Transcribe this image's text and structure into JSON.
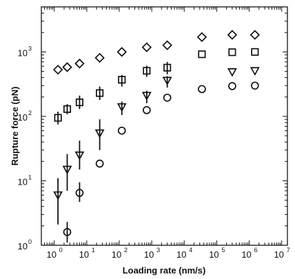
{
  "chart_data": {
    "type": "scatter",
    "title": "",
    "xlabel": "Loading rate (nm/s)",
    "ylabel": "Rupture force (pN)",
    "x_scale": "log",
    "y_scale": "log",
    "xlim": [
      0.4,
      15000000
    ],
    "ylim": [
      1,
      5000
    ],
    "x_ticks": [
      {
        "base": "10",
        "exp": "0",
        "value": 1
      },
      {
        "base": "10",
        "exp": "1",
        "value": 10
      },
      {
        "base": "10",
        "exp": "2",
        "value": 100
      },
      {
        "base": "10",
        "exp": "3",
        "value": 1000
      },
      {
        "base": "10",
        "exp": "4",
        "value": 10000
      },
      {
        "base": "10",
        "exp": "5",
        "value": 100000
      },
      {
        "base": "10",
        "exp": "6",
        "value": 1000000
      },
      {
        "base": "10",
        "exp": "7",
        "value": 10000000
      }
    ],
    "y_ticks": [
      {
        "base": "10",
        "exp": "0",
        "value": 1
      },
      {
        "base": "10",
        "exp": "1",
        "value": 10
      },
      {
        "base": "10",
        "exp": "2",
        "value": 100
      },
      {
        "base": "10",
        "exp": "3",
        "value": 1000
      }
    ],
    "grid": false,
    "legend": "none",
    "series": [
      {
        "marker": "diamond",
        "points": [
          {
            "x": 1.3,
            "y": 530
          },
          {
            "x": 2.5,
            "y": 580
          },
          {
            "x": 6,
            "y": 660
          },
          {
            "x": 25,
            "y": 810
          },
          {
            "x": 120,
            "y": 1000
          },
          {
            "x": 700,
            "y": 1180
          },
          {
            "x": 3000,
            "y": 1270
          },
          {
            "x": 35000,
            "y": 1700
          },
          {
            "x": 300000,
            "y": 1840
          },
          {
            "x": 1500000,
            "y": 1840
          }
        ]
      },
      {
        "marker": "square",
        "points": [
          {
            "x": 1.3,
            "y": 95,
            "err": [
              75,
              118
            ]
          },
          {
            "x": 2.5,
            "y": 130,
            "err": [
              108,
              155
            ]
          },
          {
            "x": 6,
            "y": 165,
            "err": [
              130,
              210
            ]
          },
          {
            "x": 25,
            "y": 230,
            "err": [
              180,
              290
            ]
          },
          {
            "x": 120,
            "y": 370,
            "err": [
              290,
              440
            ]
          },
          {
            "x": 700,
            "y": 510,
            "err": [
              410,
              610
            ]
          },
          {
            "x": 3000,
            "y": 570,
            "err": [
              450,
              700
            ]
          },
          {
            "x": 35000,
            "y": 920
          },
          {
            "x": 300000,
            "y": 990
          },
          {
            "x": 1500000,
            "y": 1000
          }
        ]
      },
      {
        "marker": "triangle-down",
        "points": [
          {
            "x": 1.3,
            "y": 6,
            "err": [
              2.1,
              11
            ]
          },
          {
            "x": 2.5,
            "y": 15,
            "err": [
              7,
              26
            ]
          },
          {
            "x": 6,
            "y": 25,
            "err": [
              15,
              42
            ]
          },
          {
            "x": 25,
            "y": 55,
            "err": [
              30,
              90
            ]
          },
          {
            "x": 120,
            "y": 140,
            "err": [
              105,
              170
            ]
          },
          {
            "x": 700,
            "y": 210,
            "err": [
              160,
              250
            ]
          },
          {
            "x": 3000,
            "y": 360,
            "err": [
              280,
              420
            ]
          },
          {
            "x": 300000,
            "y": 490
          },
          {
            "x": 1500000,
            "y": 510
          }
        ]
      },
      {
        "marker": "circle",
        "points": [
          {
            "x": 2.5,
            "y": 1.6,
            "err": [
              1.1,
              2.3
            ]
          },
          {
            "x": 6,
            "y": 6.5,
            "err": [
              4.7,
              9.5
            ]
          },
          {
            "x": 25,
            "y": 18.5
          },
          {
            "x": 120,
            "y": 60
          },
          {
            "x": 700,
            "y": 125
          },
          {
            "x": 3000,
            "y": 195
          },
          {
            "x": 35000,
            "y": 265
          },
          {
            "x": 300000,
            "y": 295
          },
          {
            "x": 1500000,
            "y": 300
          }
        ]
      }
    ]
  }
}
